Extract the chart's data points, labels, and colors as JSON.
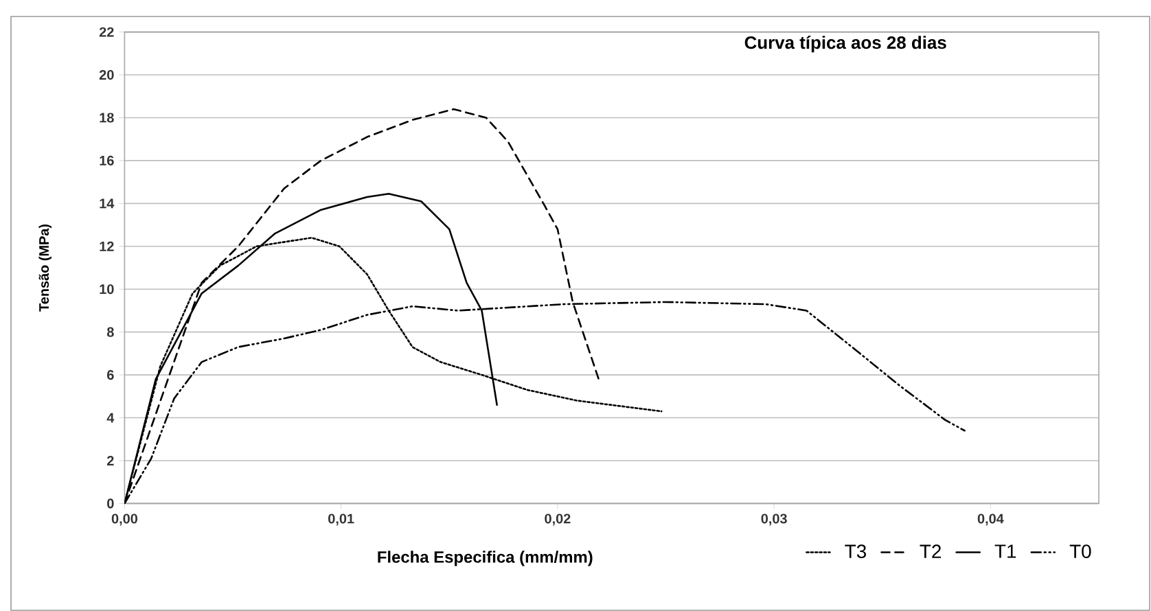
{
  "chart_data": {
    "type": "line",
    "title": "Curva típica aos 28 dias",
    "xlabel": "Flecha Especifica (mm/mm)",
    "ylabel": "Tensão  (MPa)",
    "xlim": [
      0,
      0.045
    ],
    "ylim": [
      0,
      22
    ],
    "xticks": [
      {
        "value": 0,
        "label": "0,00"
      },
      {
        "value": 0.01,
        "label": "0,01"
      },
      {
        "value": 0.02,
        "label": "0,02"
      },
      {
        "value": 0.03,
        "label": "0,03"
      },
      {
        "value": 0.04,
        "label": "0,04"
      }
    ],
    "yticks": [
      0,
      2,
      4,
      6,
      8,
      10,
      12,
      14,
      16,
      18,
      20,
      22
    ],
    "grid": "y",
    "legend": "bottom right",
    "marker": "none",
    "series": [
      {
        "name": "T3",
        "color": "#000000",
        "line_style": "dotted",
        "x": [
          0,
          0.00165,
          0.00314,
          0.00441,
          0.0061,
          0.00864,
          0.00992,
          0.0112,
          0.0122,
          0.0133,
          0.0146,
          0.0165,
          0.0186,
          0.0209,
          0.0248
        ],
        "values": [
          0,
          6.4,
          9.8,
          11.1,
          12.0,
          12.4,
          12.0,
          10.7,
          9.0,
          7.3,
          6.6,
          6.0,
          5.3,
          4.8,
          4.3
        ]
      },
      {
        "name": "T2",
        "color": "#000000",
        "line_style": "dashed",
        "x": [
          0,
          0.00356,
          0.00525,
          0.00737,
          0.00907,
          0.0112,
          0.0133,
          0.0152,
          0.0167,
          0.0177,
          0.0194,
          0.02,
          0.0207,
          0.0219
        ],
        "values": [
          0,
          10.3,
          12.0,
          14.7,
          16.0,
          17.1,
          17.9,
          18.4,
          18.0,
          16.9,
          13.9,
          12.8,
          9.4,
          5.8
        ]
      },
      {
        "name": "T1",
        "color": "#000000",
        "line_style": "solid",
        "x": [
          0,
          0.00144,
          0.00356,
          0.00525,
          0.00695,
          0.00907,
          0.0112,
          0.0122,
          0.0137,
          0.015,
          0.0158,
          0.0165,
          0.0172
        ],
        "values": [
          0,
          5.8,
          9.8,
          11.1,
          12.6,
          13.7,
          14.3,
          14.45,
          14.1,
          12.8,
          10.3,
          9.0,
          4.6
        ]
      },
      {
        "name": "T0",
        "color": "#000000",
        "line_style": "dashdotdotted",
        "x": [
          0,
          0.00123,
          0.00229,
          0.00356,
          0.00525,
          0.00737,
          0.00907,
          0.0112,
          0.0133,
          0.0154,
          0.0203,
          0.025,
          0.0296,
          0.0315,
          0.0336,
          0.0358,
          0.0379,
          0.0388
        ],
        "values": [
          0,
          2.1,
          4.9,
          6.6,
          7.3,
          7.7,
          8.1,
          8.8,
          9.2,
          9.0,
          9.3,
          9.4,
          9.3,
          9.0,
          7.3,
          5.5,
          3.9,
          3.4
        ]
      }
    ]
  }
}
